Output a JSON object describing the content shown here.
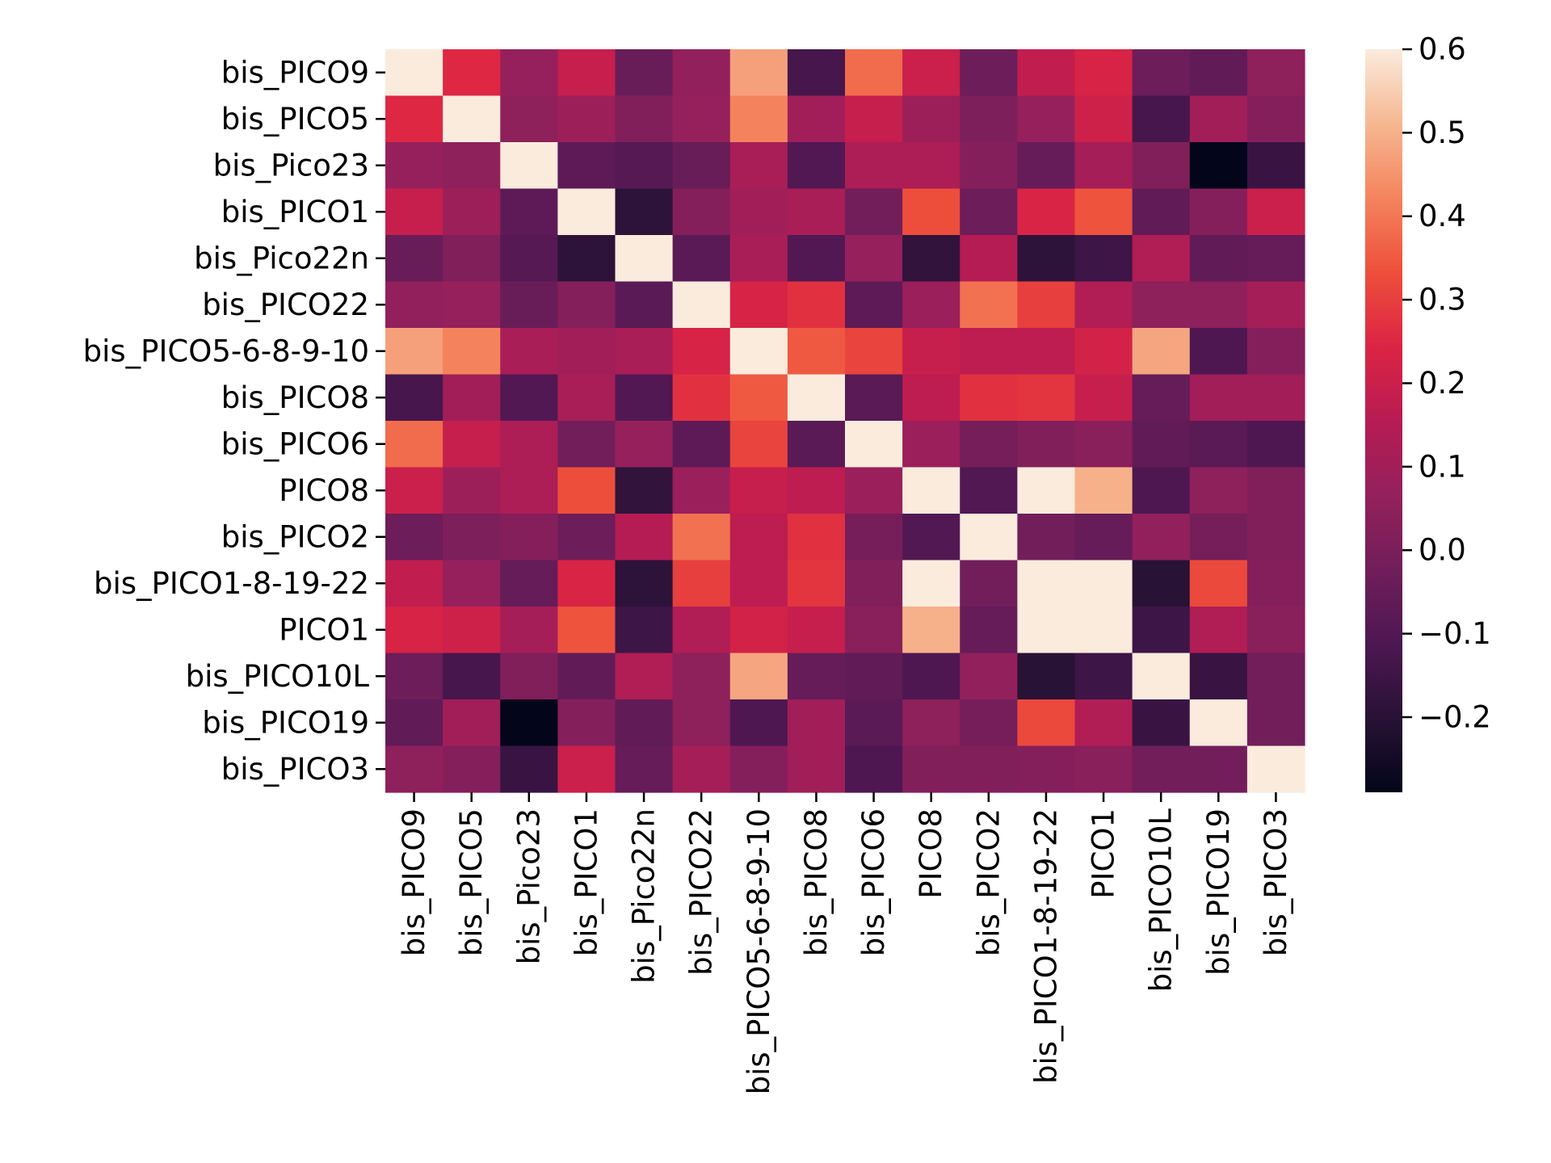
{
  "chart_data": {
    "type": "heatmap",
    "title": "",
    "xlabel": "",
    "ylabel": "",
    "labels": [
      "bis_PICO9",
      "bis_PICO5",
      "bis_Pico23",
      "bis_PICO1",
      "bis_Pico22n",
      "bis_PICO22",
      "bis_PICO5-6-8-9-10",
      "bis_PICO8",
      "bis_PICO6",
      "PICO8",
      "bis_PICO2",
      "bis_PICO1-8-19-22",
      "PICO1",
      "bis_PICO10L",
      "bis_PICO19",
      "bis_PICO3"
    ],
    "matrix": [
      [
        1.0,
        0.25,
        0.07,
        0.19,
        -0.04,
        0.06,
        0.47,
        -0.13,
        0.38,
        0.2,
        -0.03,
        0.18,
        0.23,
        -0.03,
        -0.06,
        0.05
      ],
      [
        0.25,
        1.0,
        0.05,
        0.09,
        0.02,
        0.07,
        0.42,
        0.1,
        0.19,
        0.09,
        0.01,
        0.07,
        0.21,
        -0.13,
        0.1,
        0.03
      ],
      [
        0.07,
        0.05,
        1.0,
        -0.07,
        -0.09,
        -0.04,
        0.12,
        -0.1,
        0.13,
        0.13,
        0.03,
        -0.05,
        0.11,
        0.02,
        -0.29,
        -0.16
      ],
      [
        0.19,
        0.09,
        -0.07,
        1.0,
        -0.19,
        0.03,
        0.1,
        0.12,
        -0.02,
        0.33,
        -0.03,
        0.24,
        0.34,
        -0.06,
        0.03,
        0.2
      ],
      [
        -0.04,
        0.02,
        -0.09,
        -0.19,
        1.0,
        -0.08,
        0.12,
        -0.1,
        0.07,
        -0.18,
        0.15,
        -0.19,
        -0.15,
        0.14,
        -0.06,
        -0.05
      ],
      [
        0.06,
        0.07,
        -0.04,
        0.03,
        -0.08,
        1.0,
        0.23,
        0.27,
        -0.07,
        0.08,
        0.39,
        0.3,
        0.14,
        0.05,
        0.05,
        0.11
      ],
      [
        0.47,
        0.42,
        0.12,
        0.1,
        0.12,
        0.23,
        1.0,
        0.35,
        0.31,
        0.19,
        0.17,
        0.17,
        0.22,
        0.48,
        -0.11,
        0.03
      ],
      [
        -0.13,
        0.1,
        -0.1,
        0.12,
        -0.1,
        0.27,
        0.35,
        1.0,
        -0.08,
        0.17,
        0.27,
        0.28,
        0.19,
        -0.05,
        0.1,
        0.1
      ],
      [
        0.38,
        0.19,
        0.13,
        -0.02,
        0.07,
        -0.07,
        0.31,
        -0.08,
        1.0,
        0.08,
        -0.01,
        0.02,
        0.04,
        -0.06,
        -0.08,
        -0.11
      ],
      [
        0.2,
        0.09,
        0.13,
        0.33,
        -0.18,
        0.08,
        0.19,
        0.17,
        0.08,
        1.0,
        -0.1,
        0.61,
        0.5,
        -0.11,
        0.05,
        0.02
      ],
      [
        -0.03,
        0.01,
        0.03,
        -0.03,
        0.15,
        0.39,
        0.17,
        0.27,
        -0.01,
        -0.1,
        1.0,
        -0.02,
        -0.05,
        0.06,
        -0.01,
        0.02
      ],
      [
        0.18,
        0.07,
        -0.05,
        0.24,
        -0.19,
        0.3,
        0.17,
        0.28,
        0.02,
        0.61,
        -0.02,
        1.0,
        1.0,
        -0.2,
        0.32,
        0.03
      ],
      [
        0.23,
        0.21,
        0.11,
        0.34,
        -0.15,
        0.14,
        0.22,
        0.19,
        0.04,
        0.5,
        -0.05,
        1.0,
        1.0,
        -0.15,
        0.14,
        0.04
      ],
      [
        -0.03,
        -0.13,
        0.02,
        -0.06,
        0.14,
        0.05,
        0.48,
        -0.05,
        -0.06,
        -0.11,
        0.06,
        -0.2,
        -0.15,
        1.0,
        -0.16,
        -0.02
      ],
      [
        -0.06,
        0.1,
        -0.29,
        0.03,
        -0.06,
        0.05,
        -0.11,
        0.1,
        -0.08,
        0.05,
        -0.01,
        0.32,
        0.14,
        -0.16,
        1.0,
        -0.02
      ],
      [
        0.05,
        0.03,
        -0.16,
        0.2,
        -0.05,
        0.11,
        0.03,
        0.1,
        -0.11,
        0.02,
        0.02,
        0.03,
        0.04,
        -0.02,
        -0.02,
        1.0
      ]
    ],
    "vmin": -0.29,
    "vmax": 0.6,
    "colorbar_ticks": [
      0.6,
      0.5,
      0.4,
      0.3,
      0.2,
      0.1,
      0.0,
      -0.1,
      -0.2
    ],
    "colorbar_tick_labels": [
      "0.6",
      "0.5",
      "0.4",
      "0.3",
      "0.2",
      "0.1",
      "0.0",
      "−0.1",
      "−0.2"
    ],
    "colormap": "rocket"
  }
}
